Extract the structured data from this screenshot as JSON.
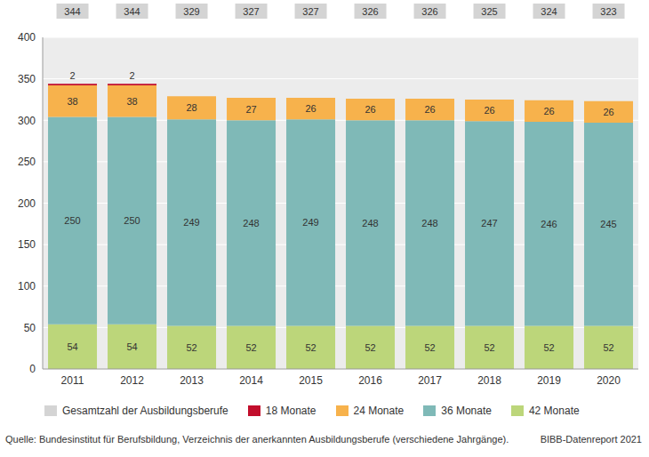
{
  "chart_data": {
    "type": "bar",
    "stacked": true,
    "categories": [
      "2011",
      "2012",
      "2013",
      "2014",
      "2015",
      "2016",
      "2017",
      "2018",
      "2019",
      "2020"
    ],
    "series": [
      {
        "name": "42 Monate",
        "color": "#bcd67a",
        "values": [
          54,
          54,
          52,
          52,
          52,
          52,
          52,
          52,
          52,
          52
        ]
      },
      {
        "name": "36 Monate",
        "color": "#7fb9b7",
        "values": [
          250,
          250,
          249,
          248,
          249,
          248,
          248,
          247,
          246,
          245
        ]
      },
      {
        "name": "24 Monate",
        "color": "#f7b24c",
        "values": [
          38,
          38,
          28,
          27,
          26,
          26,
          26,
          26,
          26,
          26
        ]
      },
      {
        "name": "18 Monate",
        "color": "#c20e2c",
        "values": [
          2,
          2,
          0,
          0,
          0,
          null,
          null,
          null,
          null,
          null
        ]
      }
    ],
    "totals": {
      "name": "Gesamtzahl der Ausbildungsberufe",
      "color": "#d4d4d4",
      "values": [
        344,
        344,
        329,
        327,
        327,
        326,
        326,
        325,
        324,
        323
      ]
    },
    "ylim": [
      0,
      400
    ],
    "yticks": [
      0,
      50,
      100,
      150,
      200,
      250,
      300,
      350,
      400
    ],
    "grid": true,
    "data_labels": true,
    "legend": "bottom",
    "source": "Quelle: Bundesinstitut für Berufsbildung, Verzeichnis der anerkannten Ausbildungsberufe (verschiedene Jahrgänge).",
    "credit": "BIBB-Datenreport 2021"
  }
}
